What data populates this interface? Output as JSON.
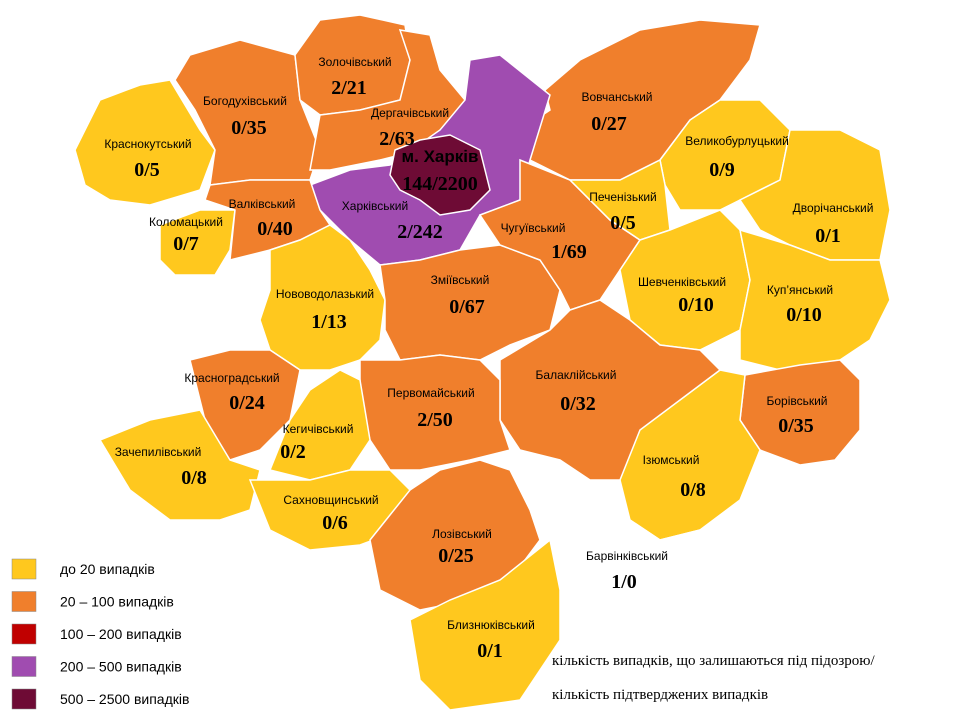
{
  "districts": [
    {
      "name": "Краснокутський",
      "value": "0/5",
      "color": "#ffc81e"
    },
    {
      "name": "Богодухівський",
      "value": "0/35",
      "color": "#f07f2c"
    },
    {
      "name": "Золочівський",
      "value": "2/21",
      "color": "#f07f2c"
    },
    {
      "name": "Дергачівський",
      "value": "2/63",
      "color": "#f07f2c"
    },
    {
      "name": "Вовчанський",
      "value": "0/27",
      "color": "#f07f2c"
    },
    {
      "name": "Великобурлуцький",
      "value": "0/9",
      "color": "#ffc81e"
    },
    {
      "name": "Дворічанський",
      "value": "0/1",
      "color": "#ffc81e"
    },
    {
      "name": "Харківський",
      "value": "2/242",
      "color": "#a04cb0"
    },
    {
      "name": "Коломацький",
      "value": "0/7",
      "color": "#ffc81e"
    },
    {
      "name": "Валківський",
      "value": "0/40",
      "color": "#f07f2c"
    },
    {
      "name": "Нововодолазький",
      "value": "1/13",
      "color": "#ffc81e"
    },
    {
      "name": "Зміївський",
      "value": "0/67",
      "color": "#f07f2c"
    },
    {
      "name": "Чугуївський",
      "value": "1/69",
      "color": "#f07f2c"
    },
    {
      "name": "Печенізький",
      "value": "0/5",
      "color": "#ffc81e"
    },
    {
      "name": "Шевченківський",
      "value": "0/10",
      "color": "#ffc81e"
    },
    {
      "name": "Куп’янський",
      "value": "0/10",
      "color": "#ffc81e"
    },
    {
      "name": "Борівський",
      "value": "0/35",
      "color": "#f07f2c"
    },
    {
      "name": "Ізюмський",
      "value": "0/8",
      "color": "#ffc81e"
    },
    {
      "name": "Барвінківський",
      "value": "1/0",
      "color": "#ffffff"
    },
    {
      "name": "Балаклійський",
      "value": "0/32",
      "color": "#f07f2c"
    },
    {
      "name": "Первомайський",
      "value": "2/50",
      "color": "#f07f2c"
    },
    {
      "name": "Красноградський",
      "value": "0/24",
      "color": "#f07f2c"
    },
    {
      "name": "Кегичівський",
      "value": "0/2",
      "color": "#ffc81e"
    },
    {
      "name": "Зачепилівський",
      "value": "0/8",
      "color": "#ffc81e"
    },
    {
      "name": "Сахновщинський",
      "value": "0/6",
      "color": "#ffc81e"
    },
    {
      "name": "Лозівський",
      "value": "0/25",
      "color": "#f07f2c"
    },
    {
      "name": "Близнюківський",
      "value": "0/1",
      "color": "#ffc81e"
    },
    {
      "name": "м. Харків",
      "value": "144/2200",
      "color": "#6e0b35"
    }
  ],
  "legend": [
    {
      "label": "до 20  випадків",
      "color": "#ffc81e"
    },
    {
      "label": "20 – 100  випадків",
      "color": "#f07f2c"
    },
    {
      "label": "100 – 200  випадків",
      "color": "#c00000"
    },
    {
      "label": "200 – 500  випадків",
      "color": "#a04cb0"
    },
    {
      "label": "500 – 2500  випадків",
      "color": "#6e0b35"
    }
  ],
  "note": [
    "кількість випадків, що залишаються під підозрою/",
    "кількість підтверджених випадків"
  ]
}
